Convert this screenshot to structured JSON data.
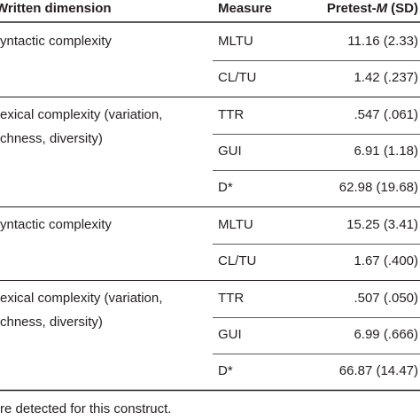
{
  "header": {
    "dimension": "Written dimension",
    "measure": "Measure",
    "pretest_prefix": "Pretest-",
    "pretest_italic": "M",
    "pretest_suffix": "(SD)"
  },
  "groups": [
    {
      "dimension": [
        "yntactic complexity"
      ],
      "rows": [
        [
          "MLTU",
          "11.16 (2.33)"
        ],
        [
          "CL/TU",
          "1.42 (.237)"
        ]
      ]
    },
    {
      "dimension": [
        "exical complexity (variation,",
        "chness, diversity)"
      ],
      "rows": [
        [
          "TTR",
          ".547 (.061)"
        ],
        [
          "GUI",
          "6.91 (1.18)"
        ],
        [
          "D*",
          "62.98 (19.68)"
        ]
      ]
    },
    {
      "dimension": [
        "yntactic complexity"
      ],
      "rows": [
        [
          "MLTU",
          "15.25 (3.41)"
        ],
        [
          "CL/TU",
          "1.67 (.400)"
        ]
      ]
    },
    {
      "dimension": [
        "exical complexity (variation,",
        "chness, diversity)"
      ],
      "rows": [
        [
          "TTR",
          ".507 (.050)"
        ],
        [
          "GUI",
          "6.99 (.666)"
        ],
        [
          "D*",
          "66.87 (14.47)"
        ]
      ]
    }
  ],
  "footnote": "re detected for this construct."
}
